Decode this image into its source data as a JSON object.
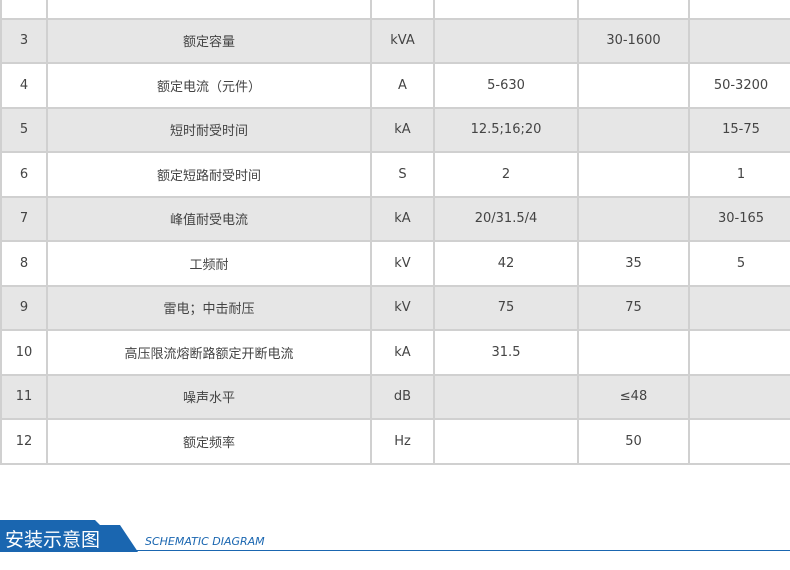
{
  "table": {
    "rows": [
      {
        "no": "",
        "name": "",
        "unit": "",
        "c1": "",
        "c2": "",
        "c3": ""
      },
      {
        "no": "3",
        "name": "额定容量",
        "unit": "kVA",
        "c1": "",
        "c2": "30-1600",
        "c3": ""
      },
      {
        "no": "4",
        "name": "额定电流（元件）",
        "unit": "A",
        "c1": "5-630",
        "c2": "",
        "c3": "50-3200"
      },
      {
        "no": "5",
        "name": "短时耐受时间",
        "unit": "kA",
        "c1": "12.5;16;20",
        "c2": "",
        "c3": "15-75"
      },
      {
        "no": "6",
        "name": "额定短路耐受时间",
        "unit": "S",
        "c1": "2",
        "c2": "",
        "c3": "1"
      },
      {
        "no": "7",
        "name": "峰值耐受电流",
        "unit": "kA",
        "c1": "20/31.5/4",
        "c2": "",
        "c3": "30-165"
      },
      {
        "no": "8",
        "name": "工频耐",
        "unit": "kV",
        "c1": "42",
        "c2": "35",
        "c3": "5"
      },
      {
        "no": "9",
        "name": "雷电；中击耐压",
        "unit": "kV",
        "c1": "75",
        "c2": "75",
        "c3": ""
      },
      {
        "no": "10",
        "name": "高压限流熔断路额定开断电流",
        "unit": "kA",
        "c1": "31.5",
        "c2": "",
        "c3": ""
      },
      {
        "no": "11",
        "name": "噪声水平",
        "unit": "dB",
        "c1": "",
        "c2": "≤48",
        "c3": ""
      },
      {
        "no": "12",
        "name": "额定频率",
        "unit": "Hz",
        "c1": "",
        "c2": "50",
        "c3": ""
      }
    ]
  },
  "section": {
    "title": "安装示意图",
    "subtitle": "SCHEMATIC DIAGRAM",
    "color": "#1a66b0"
  }
}
